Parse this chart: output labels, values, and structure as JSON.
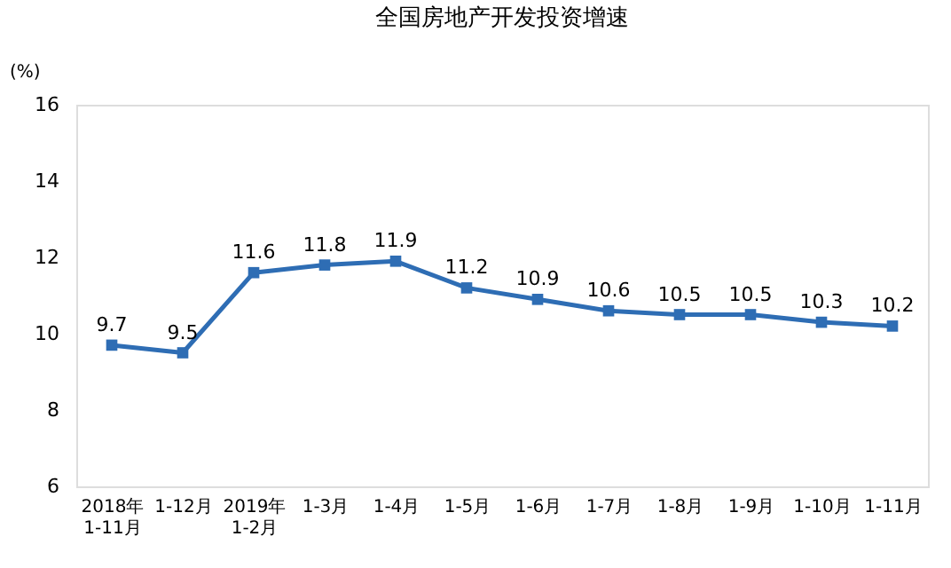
{
  "chart_data": {
    "type": "line",
    "title": "全国房地产开发投资增速",
    "ylabel": "(%)",
    "categories": [
      "2018年\n1-11月",
      "1-12月",
      "2019年\n1-2月",
      "1-3月",
      "1-4月",
      "1-5月",
      "1-6月",
      "1-7月",
      "1-8月",
      "1-9月",
      "1-10月",
      "1-11月"
    ],
    "series": [
      {
        "color": "#2e6db4",
        "values": [
          9.7,
          9.5,
          11.6,
          11.8,
          11.9,
          11.2,
          10.9,
          10.6,
          10.5,
          10.5,
          10.3,
          10.2
        ]
      }
    ],
    "ylim": [
      6,
      16
    ],
    "yticks": [
      6,
      8,
      10,
      12,
      14,
      16
    ],
    "grid": false,
    "legend": false,
    "marker": "square",
    "line_style": "solid",
    "data_labels": true
  }
}
